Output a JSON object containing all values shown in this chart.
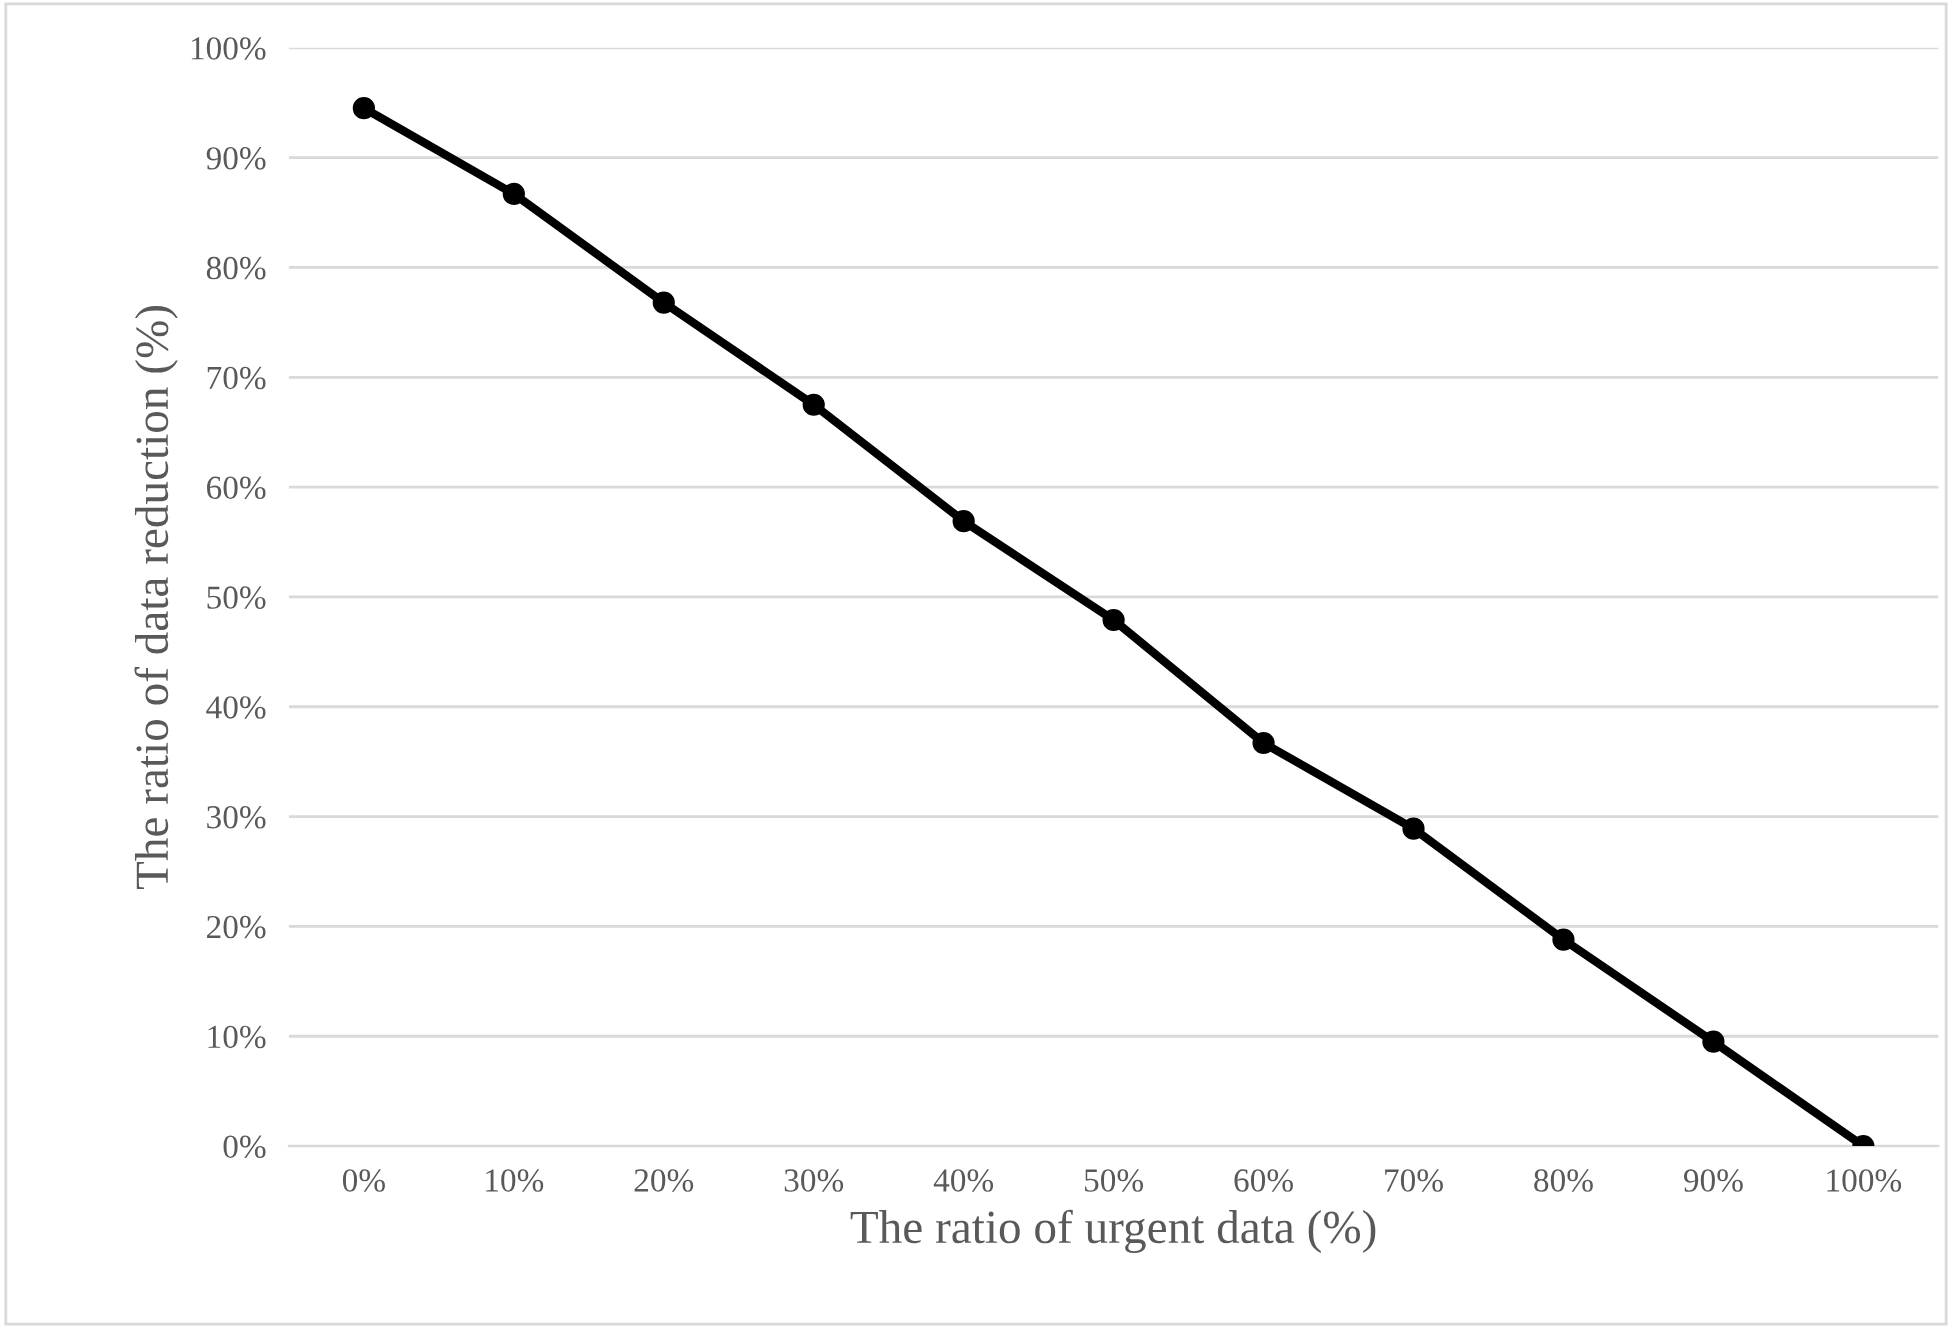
{
  "chart_data": {
    "type": "line",
    "xlabel": "The ratio of urgent data (%)",
    "ylabel": "The ratio of data reduction (%)",
    "categories": [
      "0%",
      "10%",
      "20%",
      "30%",
      "40%",
      "50%",
      "60%",
      "70%",
      "80%",
      "90%",
      "100%"
    ],
    "series": [
      {
        "color": "#000000",
        "values": [
          94.5,
          86.7,
          76.8,
          67.5,
          56.9,
          47.9,
          36.7,
          28.9,
          18.8,
          9.5,
          0
        ]
      }
    ],
    "ylim": [
      0,
      100
    ],
    "yticks": [
      {
        "value": 0,
        "label": "0%"
      },
      {
        "value": 10,
        "label": "10%"
      },
      {
        "value": 20,
        "label": "20%"
      },
      {
        "value": 30,
        "label": "30%"
      },
      {
        "value": 40,
        "label": "40%"
      },
      {
        "value": 50,
        "label": "50%"
      },
      {
        "value": 60,
        "label": "60%"
      },
      {
        "value": 70,
        "label": "70%"
      },
      {
        "value": 80,
        "label": "80%"
      },
      {
        "value": 90,
        "label": "90%"
      },
      {
        "value": 100,
        "label": "100%"
      }
    ],
    "grid": "y",
    "marker": "circle",
    "line_style": "solid",
    "legend": false
  }
}
